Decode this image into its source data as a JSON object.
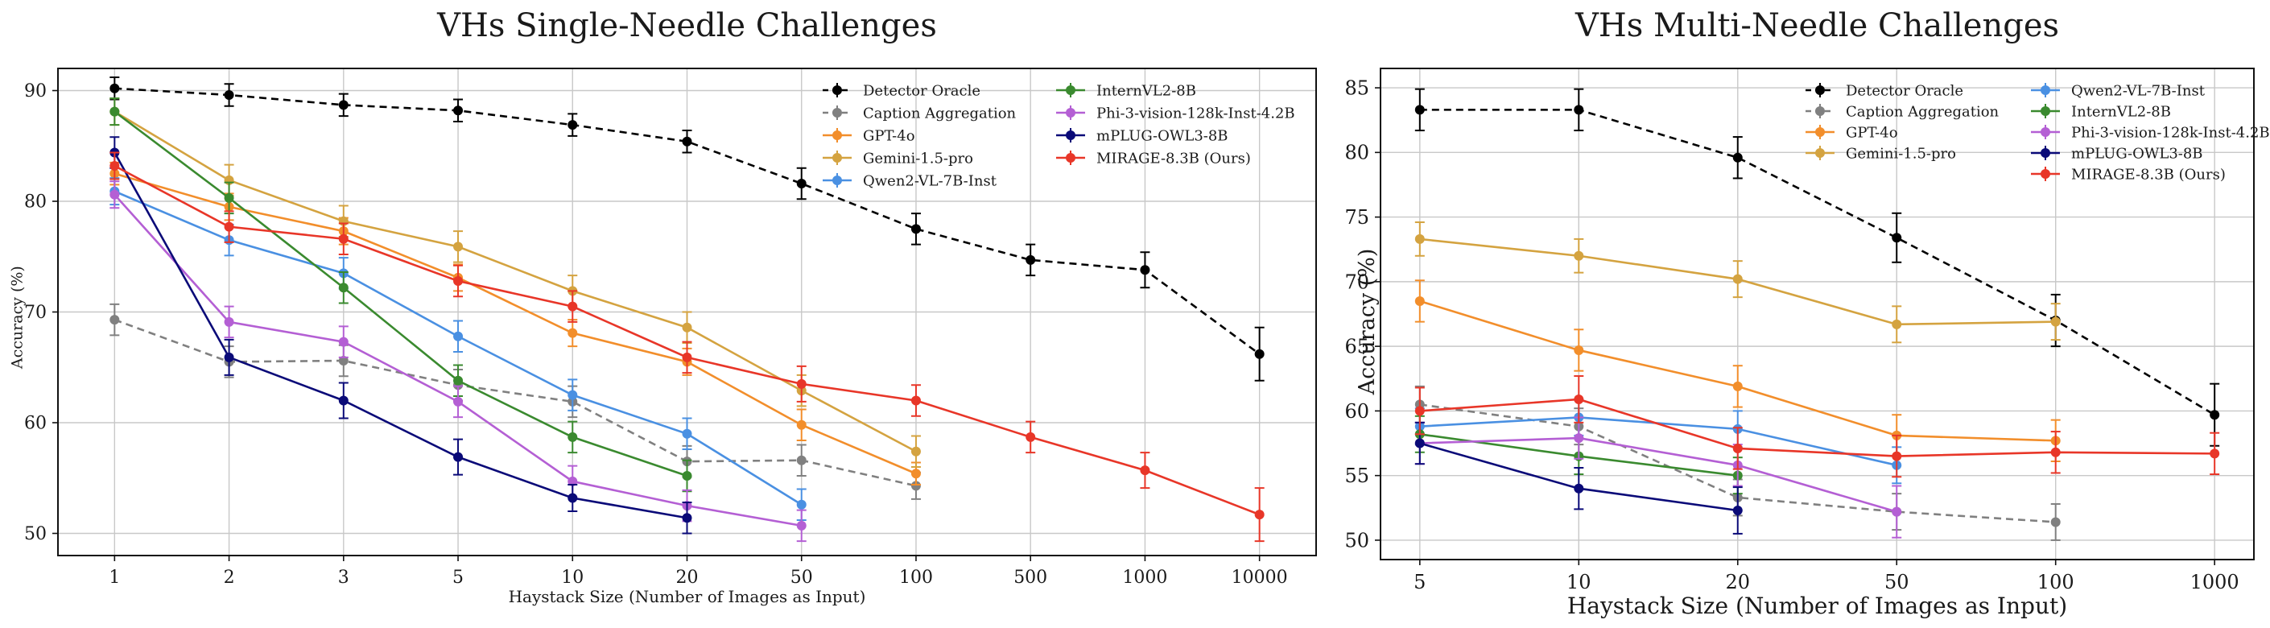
{
  "chart_data": [
    {
      "type": "line",
      "title": "VHs Single-Needle Challenges",
      "xlabel": "Haystack Size (Number of Images as Input)",
      "ylabel": "Accuracy (%)",
      "categories": [
        "1",
        "2",
        "3",
        "5",
        "10",
        "20",
        "50",
        "100",
        "500",
        "1000",
        "10000"
      ],
      "ylim": [
        48,
        92
      ],
      "yticks": [
        50,
        60,
        70,
        80,
        90
      ],
      "grid": true,
      "error_bars": true,
      "legend_position": "top-right",
      "series": [
        {
          "name": "Detector Oracle",
          "color": "#000000",
          "dash": "dashed",
          "values": [
            90.2,
            89.6,
            88.7,
            88.2,
            86.9,
            85.4,
            81.6,
            77.5,
            74.7,
            73.8,
            66.2
          ],
          "errors": [
            1.0,
            1.0,
            1.0,
            1.0,
            1.0,
            1.0,
            1.4,
            1.4,
            1.4,
            1.6,
            2.4
          ]
        },
        {
          "name": "Caption Aggregation",
          "color": "#808080",
          "dash": "dashed",
          "values": [
            69.3,
            65.5,
            65.6,
            63.4,
            61.9,
            56.5,
            56.6,
            54.3,
            null,
            null,
            null
          ],
          "errors": [
            1.4,
            1.4,
            1.4,
            1.4,
            1.4,
            1.4,
            1.4,
            1.2,
            null,
            null,
            null
          ]
        },
        {
          "name": "GPT-4o",
          "color": "#f28e2b",
          "dash": "solid",
          "values": [
            82.5,
            79.5,
            77.3,
            73.1,
            68.1,
            65.5,
            59.8,
            55.4,
            null,
            null,
            null
          ],
          "errors": [
            1.0,
            1.2,
            1.2,
            1.2,
            1.2,
            1.2,
            1.4,
            1.0,
            null,
            null,
            null
          ]
        },
        {
          "name": "Gemini-1.5-pro",
          "color": "#d4a340",
          "dash": "solid",
          "values": [
            88.1,
            81.9,
            78.2,
            75.9,
            71.9,
            68.6,
            62.9,
            57.4,
            null,
            null,
            null
          ],
          "errors": [
            1.2,
            1.4,
            1.4,
            1.4,
            1.4,
            1.4,
            1.4,
            1.4,
            null,
            null,
            null
          ]
        },
        {
          "name": "Qwen2-VL-7B-Inst",
          "color": "#4a90e2",
          "dash": "solid",
          "values": [
            80.9,
            76.5,
            73.5,
            67.8,
            62.5,
            59.0,
            52.6,
            null,
            null,
            null,
            null
          ],
          "errors": [
            1.2,
            1.4,
            1.4,
            1.4,
            1.4,
            1.4,
            1.4,
            null,
            null,
            null,
            null
          ]
        },
        {
          "name": "InternVL2-8B",
          "color": "#3a8a2f",
          "dash": "solid",
          "values": [
            88.1,
            80.3,
            72.2,
            63.8,
            58.7,
            55.2,
            null,
            null,
            null,
            null,
            null
          ],
          "errors": [
            1.2,
            1.4,
            1.4,
            1.4,
            1.4,
            1.4,
            null,
            null,
            null,
            null,
            null
          ]
        },
        {
          "name": "Phi-3-vision-128k-Inst-4.2B",
          "color": "#b45fd4",
          "dash": "solid",
          "values": [
            80.6,
            69.1,
            67.3,
            61.9,
            54.7,
            52.5,
            50.7,
            null,
            null,
            null,
            null
          ],
          "errors": [
            1.2,
            1.4,
            1.4,
            1.4,
            1.4,
            1.4,
            1.4,
            null,
            null,
            null,
            null
          ]
        },
        {
          "name": "mPLUG-OWL3-8B",
          "color": "#0a0a78",
          "dash": "solid",
          "values": [
            84.4,
            65.9,
            62.0,
            56.9,
            53.2,
            51.4,
            null,
            null,
            null,
            null,
            null
          ],
          "errors": [
            1.4,
            1.6,
            1.6,
            1.6,
            1.2,
            1.4,
            null,
            null,
            null,
            null,
            null
          ]
        },
        {
          "name": "MIRAGE-8.3B (Ours)",
          "color": "#e83628",
          "dash": "solid",
          "values": [
            83.2,
            77.7,
            76.6,
            72.8,
            70.5,
            65.9,
            63.5,
            62.0,
            58.7,
            55.7,
            51.7
          ],
          "errors": [
            1.2,
            1.4,
            1.4,
            1.4,
            1.4,
            1.4,
            1.6,
            1.4,
            1.4,
            1.6,
            2.4
          ]
        }
      ]
    },
    {
      "type": "line",
      "title": "VHs Multi-Needle Challenges",
      "xlabel": "Haystack Size (Number of Images as Input)",
      "ylabel": "Accuracy (%)",
      "categories": [
        "5",
        "10",
        "20",
        "50",
        "100",
        "1000"
      ],
      "ylim": [
        48.5,
        86.5
      ],
      "yticks": [
        50,
        55,
        60,
        65,
        70,
        75,
        80,
        85
      ],
      "grid": true,
      "error_bars": true,
      "legend_position": "top-right",
      "series": [
        {
          "name": "Detector Oracle",
          "color": "#000000",
          "dash": "dashed",
          "values": [
            83.3,
            83.3,
            79.6,
            73.4,
            67.0,
            59.7
          ],
          "errors": [
            1.6,
            1.6,
            1.6,
            1.9,
            2.0,
            2.4
          ]
        },
        {
          "name": "Caption Aggregation",
          "color": "#808080",
          "dash": "dashed",
          "values": [
            60.5,
            58.8,
            53.3,
            52.2,
            51.4,
            null
          ],
          "errors": [
            1.4,
            1.4,
            1.4,
            1.4,
            1.4,
            null
          ]
        },
        {
          "name": "GPT-4o",
          "color": "#f28e2b",
          "dash": "solid",
          "values": [
            68.5,
            64.7,
            61.9,
            58.1,
            57.7,
            null
          ],
          "errors": [
            1.6,
            1.6,
            1.6,
            1.6,
            1.6,
            null
          ]
        },
        {
          "name": "Gemini-1.5-pro",
          "color": "#d4a340",
          "dash": "solid",
          "values": [
            73.3,
            72.0,
            70.2,
            66.7,
            66.9,
            null
          ],
          "errors": [
            1.3,
            1.3,
            1.4,
            1.4,
            1.4,
            null
          ]
        },
        {
          "name": "Qwen2-VL-7B-Inst",
          "color": "#4a90e2",
          "dash": "solid",
          "values": [
            58.8,
            59.5,
            58.6,
            55.8,
            null,
            null
          ],
          "errors": [
            1.4,
            1.4,
            1.4,
            1.4,
            null,
            null
          ]
        },
        {
          "name": "InternVL2-8B",
          "color": "#3a8a2f",
          "dash": "solid",
          "values": [
            58.2,
            56.5,
            55.0,
            null,
            null,
            null
          ],
          "errors": [
            1.4,
            1.4,
            1.4,
            null,
            null,
            null
          ]
        },
        {
          "name": "Phi-3-vision-128k-Inst-4.2B",
          "color": "#b45fd4",
          "dash": "solid",
          "values": [
            57.5,
            57.9,
            55.8,
            52.2,
            null,
            null
          ],
          "errors": [
            1.6,
            1.6,
            1.6,
            2.0,
            null,
            null
          ]
        },
        {
          "name": "mPLUG-OWL3-8B",
          "color": "#0a0a78",
          "dash": "solid",
          "values": [
            57.5,
            54.0,
            52.3,
            null,
            null,
            null
          ],
          "errors": [
            1.6,
            1.6,
            1.8,
            null,
            null,
            null
          ]
        },
        {
          "name": "MIRAGE-8.3B (Ours)",
          "color": "#e83628",
          "dash": "solid",
          "values": [
            60.0,
            60.9,
            57.1,
            56.5,
            56.8,
            56.7
          ],
          "errors": [
            1.8,
            1.8,
            1.6,
            1.6,
            1.6,
            1.6
          ]
        }
      ]
    }
  ]
}
